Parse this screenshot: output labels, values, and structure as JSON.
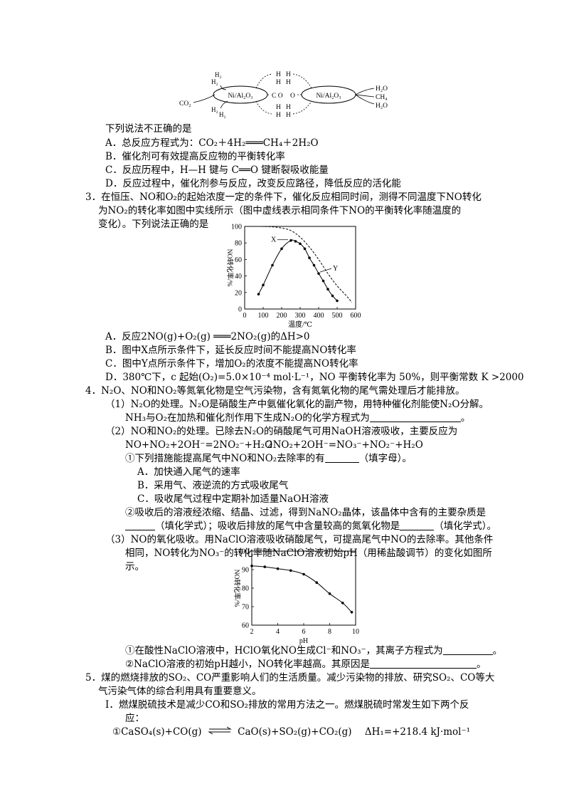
{
  "diagram": {
    "catalyst": "Ni/Al₂O₃",
    "co2": "CO₂",
    "h2": "H₂",
    "h": "H",
    "co": "C O",
    "o": "O",
    "h2o": "H₂O",
    "ch4": "CH₄"
  },
  "q2": {
    "stem": "下列说法不正确的是",
    "A": "A．总反应方程式为：CO₂＋4H₂═══CH₄＋2H₂O",
    "B": "B．催化剂可有效提高反应物的平衡转化率",
    "C": "C．反应历程中，H—H 键与 C══O 键断裂吸收能量",
    "D": "D．反应过程中，催化剂参与反应，改变反应路径，降低反应的活化能"
  },
  "q3": {
    "l1": "3．在恒压、NO和O₂的起始浓度一定的条件下，催化反应相同时间，测得不同温度下NO转化",
    "l2": "为NO₂的转化率如图中实线所示（图中虚线表示相同条件下NO的平衡转化率随温度的",
    "l3": "变化）。下列说法正确的是",
    "A": "A．反应2NO(g)+O₂(g) ═══2NO₂(g)的ΔH>0",
    "B": "B．图中X点所示条件下，延长反应时间不能提高NO转化率",
    "C": "C．图中Y点所示条件下，增加O₂的浓度不能提高NO转化率",
    "D": "D．380℃下，c 起始(O₂)=5.0×10⁻⁴ mol·L⁻¹，NO 平衡转化率为 50%，则平衡常数 K >2000"
  },
  "chart_data": [
    {
      "type": "line",
      "xlabel": "温度/℃",
      "ylabel": "NO转化率/%",
      "xlim": [
        0,
        600
      ],
      "ylim": [
        0,
        100
      ],
      "xticks": [
        "0",
        "100",
        "200",
        "300",
        "400",
        "500",
        "600"
      ],
      "yticks": [
        "0",
        "20",
        "40",
        "60",
        "80",
        "100"
      ],
      "annotations": [
        "X",
        "Y"
      ],
      "series": [
        {
          "style": "solid",
          "x": [
            75,
            100,
            150,
            200,
            250,
            275,
            300,
            325,
            350,
            375,
            400,
            425,
            450,
            475,
            500
          ],
          "y": [
            18,
            29,
            53,
            73,
            83,
            82,
            79,
            73,
            62,
            53,
            43,
            34,
            24,
            16,
            10
          ]
        },
        {
          "style": "dashed",
          "x": [
            90,
            150,
            200,
            250,
            300,
            350,
            400,
            450,
            500,
            550,
            580
          ],
          "y": [
            100,
            99.5,
            98,
            95,
            87,
            75,
            60,
            43,
            28,
            16,
            8
          ]
        }
      ]
    },
    {
      "type": "line",
      "xlabel": "pH",
      "ylabel": "NO转化率/%",
      "xlim": [
        2,
        10
      ],
      "ylim": [
        60,
        100
      ],
      "xticks": [
        "2",
        "4",
        "6",
        "8",
        "10"
      ],
      "yticks": [
        "60",
        "70",
        "80",
        "90",
        "100"
      ],
      "series": [
        {
          "style": "solid",
          "x": [
            2,
            3,
            4,
            5,
            6,
            7,
            8,
            9,
            9.7
          ],
          "y": [
            92,
            91.5,
            90.5,
            89.5,
            87.5,
            83,
            77,
            72,
            67
          ]
        }
      ]
    }
  ],
  "q4": {
    "l1": "4．N₂O、NO和NO₂等氮氧化物是空气污染物，含有氮氧化物的尾气需处理后才能排放。",
    "l2": "（1）N₂O的处理。N₂O是硝酸生产中氨催化氧化的副产物，用特种催化剂能使N₂O分解。",
    "l3": "NH₃与O₂在加热和催化剂作用下生成N₂O的化学方程式为",
    "l3end": "。",
    "l4": "（2）NO和NO₂的处理。已除去N₂O的硝酸尾气可用NaOH溶液吸收，主要反应为",
    "l5a": "NO+NO₂+2OH⁻=2NO₂⁻+H₂O",
    "l5b": "2NO₂+2OH⁻=NO₃⁻+NO₂⁻+H₂O",
    "l6": "①下列措施能提高尾气中NO和NO₂去除率的有",
    "l6end": "（填字母）。",
    "A": "A．加快通入尾气的速率",
    "B": "B．采用气、液逆流的方式吸收尾气",
    "C": "C．吸收尾气过程中定期补加适量NaOH溶液",
    "l7": "②吸收后的溶液经浓缩、结晶、过滤，得到NaNO₂晶体，该晶体中含有的主要杂质是",
    "l8a": "（填化学式）；吸收后排放的尾气中含量较高的氮氧化物是",
    "l8b": "（填化学式）。",
    "l9": "（3）NO的氧化吸收。用NaClO溶液吸收硝酸尾气，可提高尾气中NO的去除率。其他条件",
    "l10": "相同，NO转化为NO₃⁻的转化率随NaClO溶液初始pH（用稀盐酸调节）的变化如图所",
    "l11": "示。",
    "l12": "①在酸性NaClO溶液中，HClO氧化NO生成Cl⁻和NO₃⁻，其离子方程式为",
    "l12end": "。",
    "l13": "②NaClO溶液的初始pH越小，NO转化率越高。其原因是",
    "l13end": "。"
  },
  "q5": {
    "l1": "5．煤的燃烧排放的SO₂、CO严重影响人们的生活质量。减少污染物的排放、研究SO₂、CO等大",
    "l2": "气污染气体的综合利用具有重要意义。",
    "l3": "Ⅰ．燃煤脱硫技术是减少CO和SO₂排放的常用方法之一。燃煤脱硫时常发生如下两个反",
    "l4": "应：",
    "l5a": "①CaSO₄(s)+CO(g)",
    "l5b": "CaO(s)+SO₂(g)+CO₂(g)",
    "l5c": "ΔH₁=+218.4 kJ·mol⁻¹"
  }
}
